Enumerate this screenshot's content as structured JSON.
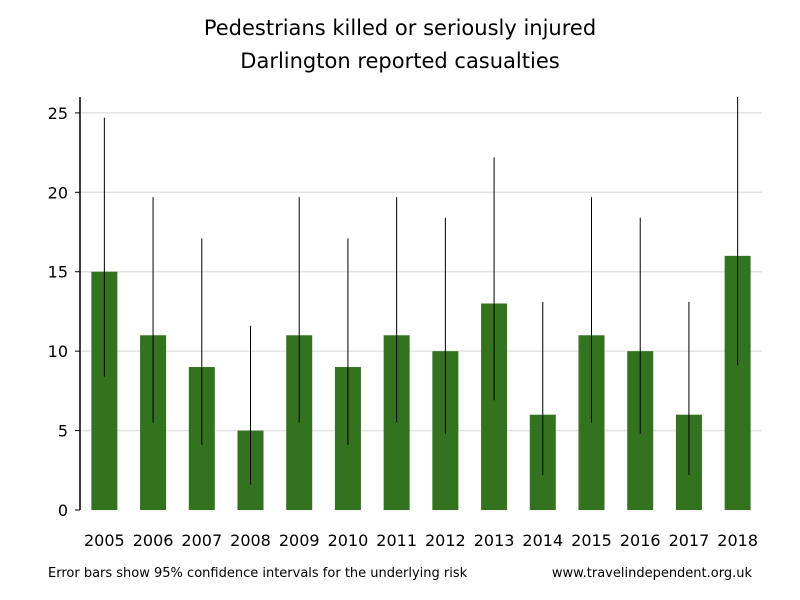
{
  "chart_data": {
    "type": "bar",
    "title": "Pedestrians killed or seriously injured",
    "subtitle": "Darlington reported casualties",
    "xlabel": "",
    "ylabel": "",
    "categories": [
      "2005",
      "2006",
      "2007",
      "2008",
      "2009",
      "2010",
      "2011",
      "2012",
      "2013",
      "2014",
      "2015",
      "2016",
      "2017",
      "2018"
    ],
    "values": [
      15,
      11,
      9,
      5,
      11,
      9,
      11,
      10,
      13,
      6,
      11,
      10,
      6,
      16
    ],
    "error_low": [
      8.4,
      5.5,
      4.1,
      1.6,
      5.5,
      4.1,
      5.5,
      4.8,
      6.9,
      2.2,
      5.5,
      4.8,
      2.2,
      9.1
    ],
    "error_high": [
      24.7,
      19.7,
      17.1,
      11.6,
      19.7,
      17.1,
      19.7,
      18.4,
      22.2,
      13.1,
      19.7,
      18.4,
      13.1,
      26.0
    ],
    "ylim": [
      0,
      26
    ],
    "yticks": [
      0,
      5,
      10,
      15,
      20,
      25
    ],
    "grid": true,
    "bar_color": "#33721f",
    "errorbar_color": "#000000",
    "footnote": "Error bars show 95% confidence intervals for the underlying risk",
    "source": "www.travelindependent.org.uk"
  }
}
